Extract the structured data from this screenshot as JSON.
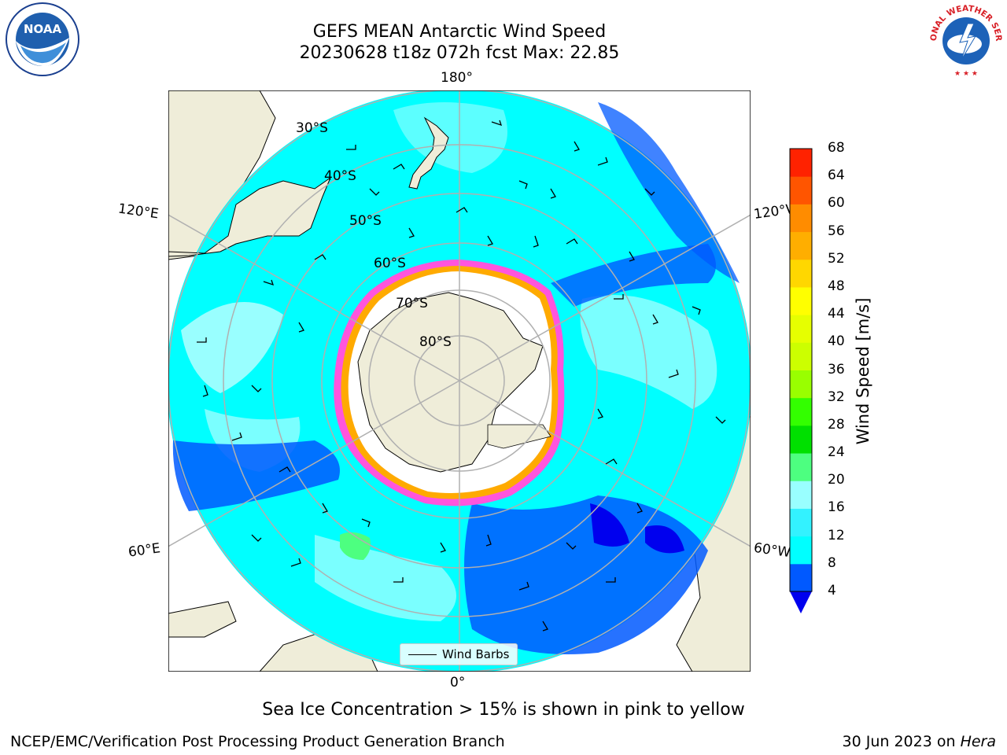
{
  "title": {
    "line1": "GEFS MEAN Antarctic Wind Speed",
    "line2": "20230628 t18z 072h fcst   Max: 22.85"
  },
  "logos": {
    "left_text": "NOAA",
    "right_text": "NATIONAL WEATHER SERVICE"
  },
  "map": {
    "projection": "south polar stereographic",
    "longitude_labels": [
      "180°",
      "120°E",
      "120°W",
      "60°E",
      "60°W",
      "0°"
    ],
    "latitude_labels": [
      "30°S",
      "40°S",
      "50°S",
      "60°S",
      "70°S",
      "80°S"
    ],
    "legend_label": "Wind Barbs",
    "colors": {
      "land": "#efedd9",
      "sea_ice": "#ffffff",
      "ice_edge": [
        "#ff55dd",
        "#ffaa00"
      ]
    }
  },
  "colorbar": {
    "label": "Wind Speed [m/s]",
    "ticks": [
      "4",
      "8",
      "12",
      "16",
      "20",
      "24",
      "28",
      "32",
      "36",
      "40",
      "44",
      "48",
      "52",
      "56",
      "60",
      "64",
      "68"
    ],
    "colors": [
      "#0059ff",
      "#00ffff",
      "#33f2ff",
      "#99ffff",
      "#4dff80",
      "#00e000",
      "#33ff00",
      "#99ff00",
      "#ccff00",
      "#e6ff00",
      "#ffff00",
      "#ffd700",
      "#ffae00",
      "#ff8c00",
      "#ff5500",
      "#ff2200",
      "#ff0000"
    ],
    "under_color": "#0000ee"
  },
  "note": "Sea Ice Concentration > 15% is shown in pink to yellow",
  "footer": {
    "left": "NCEP/EMC/Verification Post Processing Product Generation Branch",
    "right_prefix": "30 Jun 2023 on ",
    "right_host": "Hera"
  }
}
